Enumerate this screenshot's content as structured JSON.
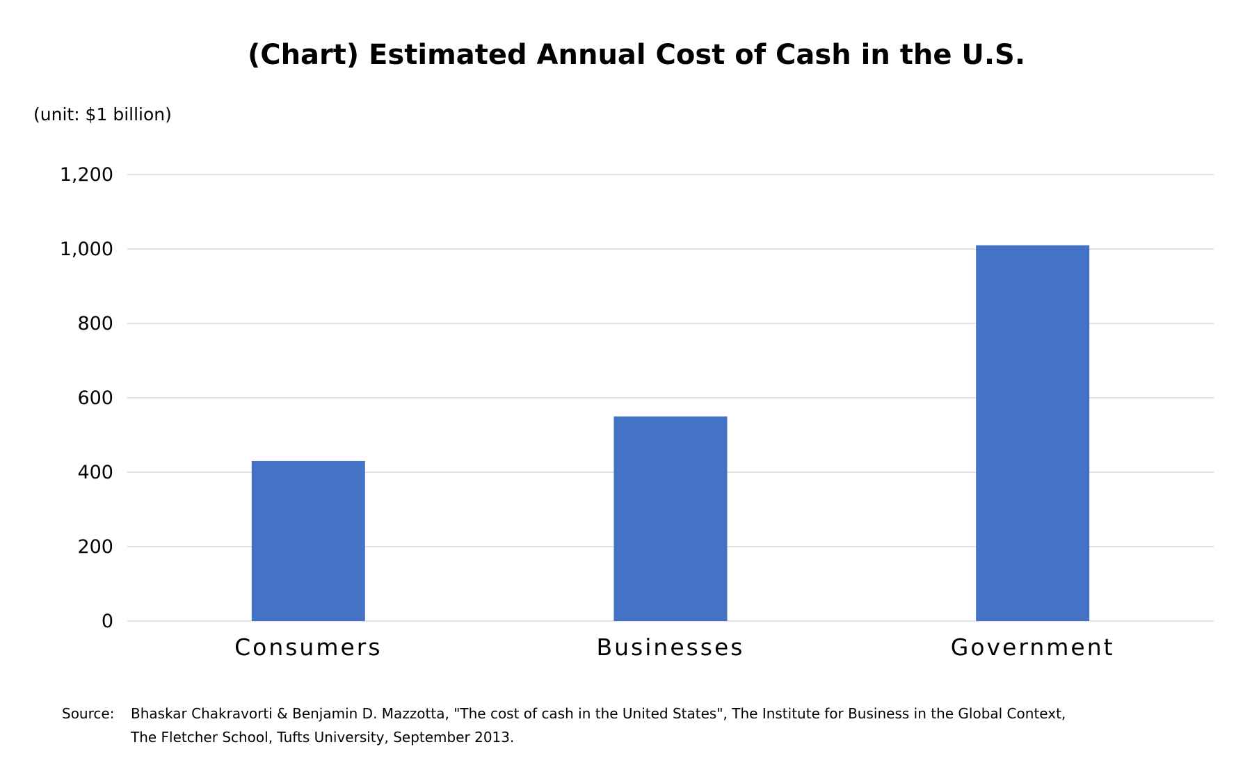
{
  "chart_data": {
    "type": "bar",
    "title": "(Chart) Estimated Annual Cost of Cash in the U.S.",
    "unit_label": "(unit: $1 billion)",
    "categories": [
      "Consumers",
      "Businesses",
      "Government"
    ],
    "values": [
      430,
      550,
      1010
    ],
    "ylim": [
      0,
      1200
    ],
    "yticks": [
      0,
      200,
      400,
      600,
      800,
      1000,
      1200
    ],
    "ytick_labels": [
      "0",
      "200",
      "400",
      "600",
      "800",
      "1,000",
      "1,200"
    ],
    "grid": true,
    "bar_color": "#4472c4",
    "grid_color": "#d9d9d9"
  },
  "source": {
    "label": "Source:",
    "line1": "Bhaskar Chakravorti & Benjamin D. Mazzotta, \"The cost of cash in the United States\", The Institute for Business in the Global Context,",
    "line2": "The Fletcher School, Tufts University, September 2013."
  }
}
